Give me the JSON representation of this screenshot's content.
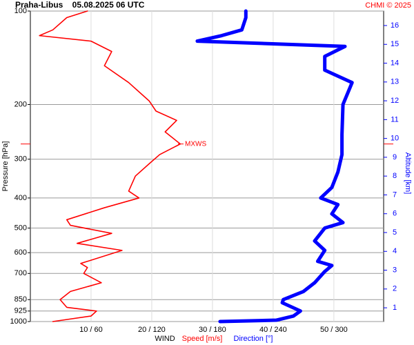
{
  "chart_data": {
    "type": "profile",
    "title": "Praha-Libus    05.08.2025 06 UTC",
    "source": "CHMI © 2025",
    "ylabel": "Pressure [hPa]",
    "y2label": "Altitude [km]",
    "xlabel": "WIND",
    "log_y": true,
    "grid": true,
    "ylim": [
      1000,
      100
    ],
    "yticks": [
      100,
      200,
      300,
      400,
      500,
      600,
      700,
      850,
      925,
      1000
    ],
    "y2lim": [
      0.27,
      16.77
    ],
    "y2ticks": [
      1,
      2,
      3,
      4,
      5,
      6,
      7,
      8,
      9,
      10,
      11,
      12,
      13,
      14,
      15,
      16
    ],
    "xlim": [
      0,
      58.2
    ],
    "x2lim": [
      0,
      349.2
    ],
    "xticks": [
      {
        "value": 10,
        "label": "10 / 60"
      },
      {
        "value": 20,
        "label": "20 / 120"
      },
      {
        "value": 30,
        "label": "30 / 180"
      },
      {
        "value": 40,
        "label": "40 / 240"
      },
      {
        "value": 50,
        "label": "50 / 300"
      }
    ],
    "series": [
      {
        "name": "Speed [m/s]",
        "color": "#ff0000",
        "axis": "x",
        "pressure": [
          1000,
          960,
          925,
          900,
          850,
          800,
          750,
          700,
          670,
          650,
          590,
          560,
          520,
          490,
          470,
          430,
          400,
          380,
          340,
          310,
          290,
          268,
          245,
          225,
          210,
          195,
          170,
          150,
          135,
          125,
          120,
          115,
          105,
          100
        ],
        "values": [
          3.7,
          10,
          10.9,
          6,
          4.9,
          6.6,
          11.7,
          8.8,
          9.4,
          8.3,
          15.1,
          7.7,
          13.4,
          6.6,
          6,
          12.2,
          17.9,
          16.2,
          17.3,
          19.6,
          21.3,
          24.7,
          22.2,
          24.1,
          20.7,
          19.6,
          16.2,
          12.2,
          13.4,
          10,
          1.5,
          3.7,
          6,
          9.4
        ]
      },
      {
        "name": "Direction [°]",
        "color": "#0000ff",
        "axis": "x2",
        "pressure": [
          1000,
          990,
          960,
          925,
          870,
          850,
          800,
          750,
          690,
          660,
          640,
          590,
          550,
          500,
          480,
          450,
          420,
          400,
          370,
          330,
          290,
          250,
          200,
          170,
          155,
          140,
          130,
          125,
          120,
          115,
          105,
          100
        ],
        "values": [
          187.5,
          243,
          260,
          267,
          249,
          250,
          270,
          281,
          291,
          298,
          284,
          291,
          281,
          291,
          309,
          298,
          304,
          287,
          298,
          304,
          308,
          308,
          309,
          318,
          291,
          291,
          311,
          165,
          189,
          209,
          213,
          213
        ]
      }
    ],
    "annotation": {
      "text": "MXWS",
      "pressure": 268
    }
  }
}
